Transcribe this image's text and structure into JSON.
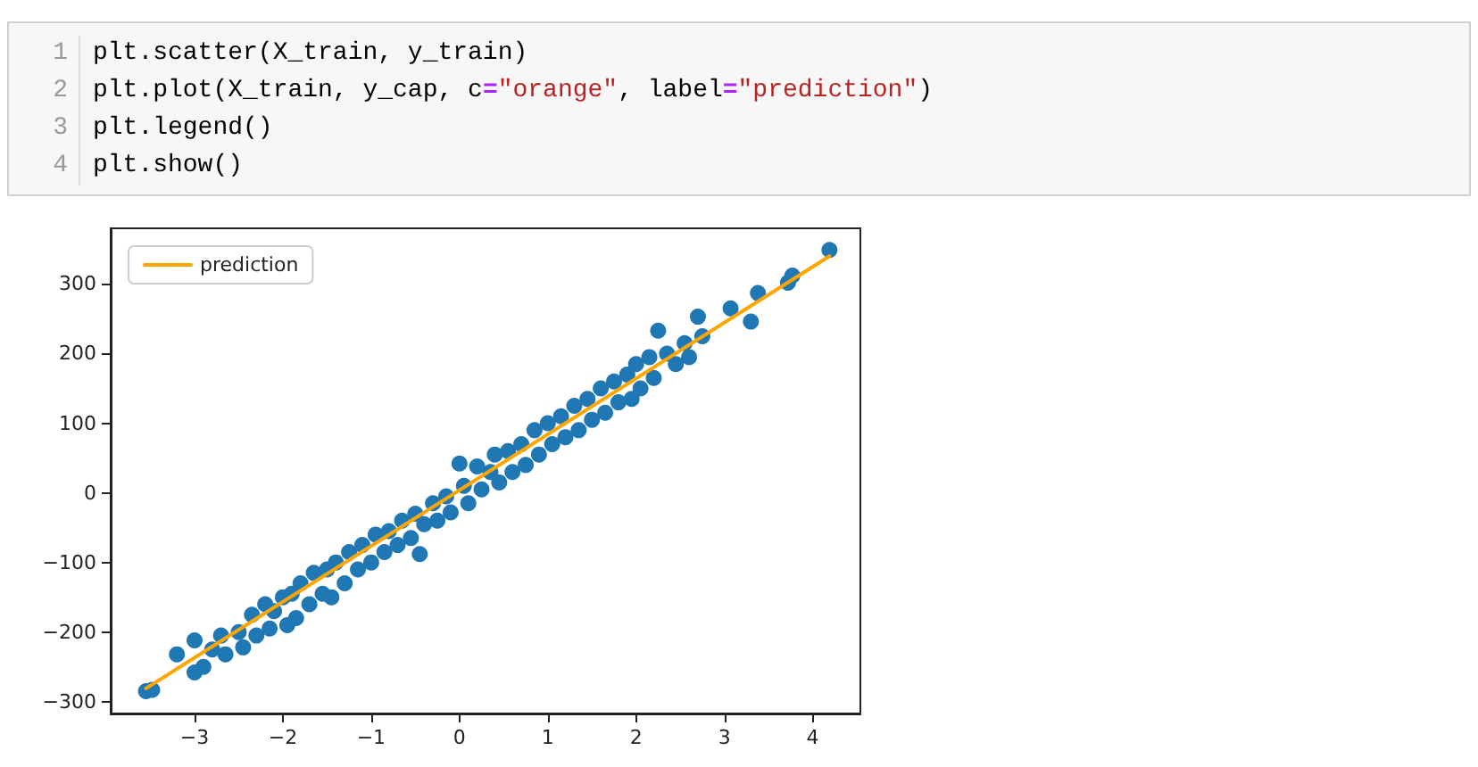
{
  "chart_data": {
    "type": "scatter",
    "annotations": [
      "1",
      "plt.scatter(X_train, y_train)",
      "2",
      "plt.plot(X_train, y_cap, c=\"orange\", label=\"prediction\")",
      "3",
      "plt.legend()",
      "4",
      "plt.show()"
    ],
    "xlim": [
      -3.95,
      4.54
    ],
    "ylim": [
      -317,
      380
    ],
    "xticks": [
      -3,
      -2,
      -1,
      0,
      1,
      2,
      3,
      4
    ],
    "yticks": [
      -300,
      -200,
      -100,
      0,
      100,
      200,
      300
    ],
    "grid": false,
    "legend": "top left",
    "series": [
      {
        "color": "#1f77b4",
        "marker": "circle",
        "x": [
          -3.55,
          -3.48,
          -3.2,
          -3.0,
          -3.0,
          -2.9,
          -2.8,
          -2.7,
          -2.65,
          -2.5,
          -2.45,
          -2.35,
          -2.3,
          -2.2,
          -2.15,
          -2.1,
          -2.0,
          -1.95,
          -1.9,
          -1.85,
          -1.8,
          -1.7,
          -1.65,
          -1.55,
          -1.5,
          -1.45,
          -1.4,
          -1.3,
          -1.25,
          -1.15,
          -1.1,
          -1.0,
          -0.95,
          -0.85,
          -0.8,
          -0.7,
          -0.65,
          -0.55,
          -0.5,
          -0.45,
          -0.4,
          -0.3,
          -0.25,
          -0.15,
          -0.1,
          0,
          0.05,
          0.1,
          0.2,
          0.25,
          0.35,
          0.4,
          0.45,
          0.55,
          0.6,
          0.7,
          0.75,
          0.85,
          0.9,
          1.0,
          1.05,
          1.15,
          1.2,
          1.3,
          1.35,
          1.45,
          1.5,
          1.6,
          1.65,
          1.75,
          1.8,
          1.9,
          1.95,
          2.0,
          2.05,
          2.15,
          2.2,
          2.25,
          2.35,
          2.45,
          2.55,
          2.6,
          2.7,
          2.75,
          3.07,
          3.3,
          3.38,
          3.72,
          3.77,
          4.19
        ],
        "values": [
          -285,
          -283,
          -232,
          -212,
          -258,
          -250,
          -225,
          -205,
          -232,
          -200,
          -222,
          -175,
          -205,
          -160,
          -195,
          -170,
          -150,
          -190,
          -145,
          -180,
          -130,
          -160,
          -115,
          -145,
          -110,
          -150,
          -100,
          -130,
          -85,
          -110,
          -75,
          -100,
          -60,
          -85,
          -55,
          -75,
          -40,
          -65,
          -30,
          -88,
          -45,
          -15,
          -40,
          -5,
          -28,
          42,
          10,
          -15,
          38,
          5,
          30,
          55,
          15,
          60,
          30,
          70,
          40,
          90,
          55,
          100,
          70,
          110,
          80,
          125,
          90,
          135,
          105,
          150,
          115,
          160,
          130,
          170,
          135,
          185,
          150,
          195,
          165,
          233,
          200,
          185,
          215,
          195,
          253,
          225,
          265,
          246,
          287,
          302,
          312,
          349
        ]
      },
      {
        "type": "line",
        "name": "prediction",
        "color": "#ffa500",
        "marker": "none",
        "x": [
          -3.55,
          4.19
        ],
        "values": [
          -281,
          340
        ]
      }
    ]
  }
}
